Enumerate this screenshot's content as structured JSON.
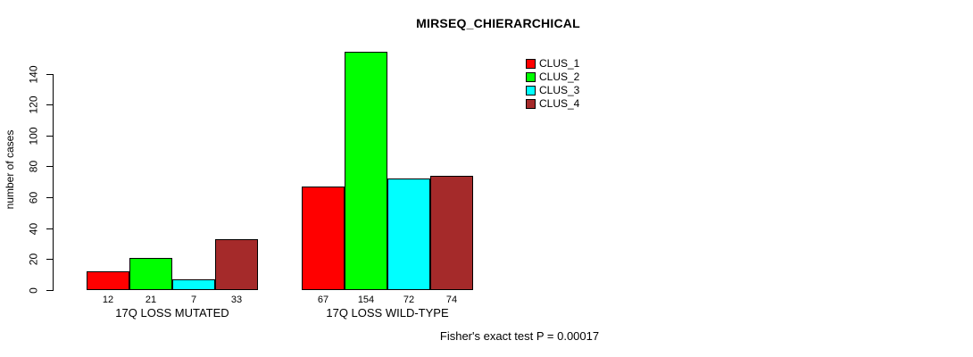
{
  "chart_data": {
    "type": "bar",
    "title": "MIRSEQ_CHIERARCHICAL",
    "ylabel": "number of cases",
    "xlabel": "",
    "footnote": "Fisher's exact test P = 0.00017",
    "categories": [
      "17Q LOSS MUTATED",
      "17Q LOSS WILD-TYPE"
    ],
    "series": [
      {
        "name": "CLUS_1",
        "color": "#ff0000",
        "values": [
          12,
          67
        ]
      },
      {
        "name": "CLUS_2",
        "color": "#00ff00",
        "values": [
          21,
          154
        ]
      },
      {
        "name": "CLUS_3",
        "color": "#00ffff",
        "values": [
          7,
          72
        ]
      },
      {
        "name": "CLUS_4",
        "color": "#a52a2a",
        "values": [
          33,
          74
        ]
      }
    ],
    "bar_value_labels": [
      [
        12,
        21,
        7,
        33
      ],
      [
        67,
        154,
        72,
        74
      ]
    ],
    "yticks": [
      0,
      20,
      40,
      60,
      80,
      100,
      120,
      140
    ],
    "ylim": [
      0,
      140
    ],
    "grid": false,
    "legend_position": "top-right",
    "legend_entries": [
      "CLUS_1",
      "CLUS_2",
      "CLUS_3",
      "CLUS_4"
    ],
    "axis_color": "#000000",
    "bar_border_color": "#000000"
  }
}
